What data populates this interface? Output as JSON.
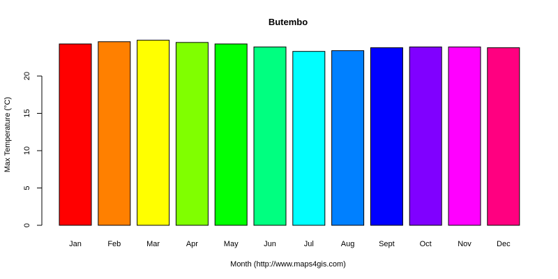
{
  "chart_data": {
    "type": "bar",
    "title": "Butembo",
    "xlabel": "Month (http://www.maps4gis.com)",
    "ylabel": "Max Temperature (°C)",
    "categories": [
      "Jan",
      "Feb",
      "Mar",
      "Apr",
      "May",
      "Jun",
      "Jul",
      "Aug",
      "Sept",
      "Oct",
      "Nov",
      "Dec"
    ],
    "values": [
      24.3,
      24.6,
      24.8,
      24.5,
      24.3,
      23.9,
      23.3,
      23.4,
      23.8,
      23.9,
      23.9,
      23.8
    ],
    "colors": [
      "#FF0000",
      "#FF8000",
      "#FFFF00",
      "#80FF00",
      "#00FF00",
      "#00FF80",
      "#00FFFF",
      "#0080FF",
      "#0000FF",
      "#8000FF",
      "#FF00FF",
      "#FF0080"
    ],
    "yticks": [
      0,
      5,
      10,
      15,
      20
    ],
    "ylim": [
      0,
      25
    ]
  }
}
